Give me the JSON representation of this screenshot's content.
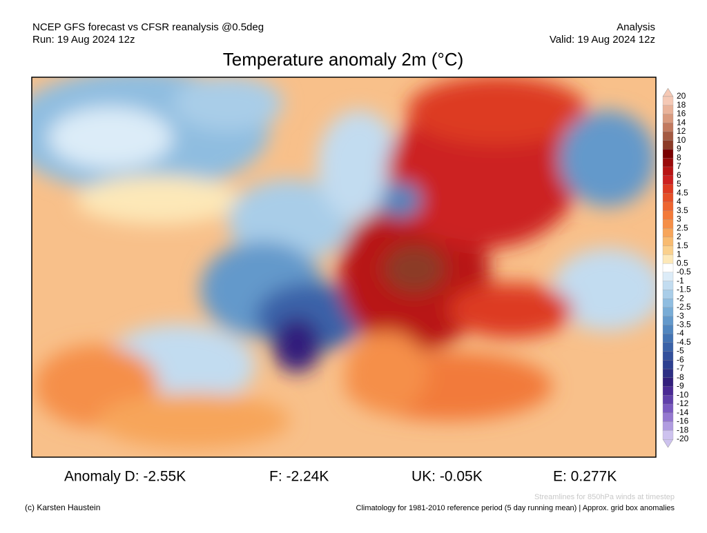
{
  "header": {
    "left": [
      "NCEP GFS forecast vs CFSR reanalysis @0.5deg",
      "Run: 19 Aug 2024 12z"
    ],
    "right": [
      "Analysis",
      "Valid: 19 Aug 2024 12z"
    ],
    "title": "Temperature anomaly 2m (°C)"
  },
  "colorbar": {
    "labels": [
      20,
      18,
      16,
      14,
      12,
      10,
      9,
      8,
      7,
      6,
      5,
      4.5,
      4,
      3.5,
      3,
      2.5,
      2,
      1.5,
      1,
      0.5,
      -0.5,
      -1,
      -1.5,
      -2,
      -2.5,
      -3,
      -3.5,
      -4,
      -4.5,
      -5,
      -6,
      -7,
      -8,
      -9,
      -10,
      -12,
      -14,
      -16,
      -18,
      -20
    ],
    "colors": [
      "#f5c9b5",
      "#e9b39a",
      "#d99a7e",
      "#c27a5f",
      "#a45a42",
      "#8b3b28",
      "#7a0000",
      "#9a0a0a",
      "#b81414",
      "#cc2020",
      "#dd3a22",
      "#e65028",
      "#ee6530",
      "#f27a3a",
      "#f58f48",
      "#f7a55a",
      "#f8bb70",
      "#fad08c",
      "#fde8b8",
      "#ffffff",
      "#dcecf8",
      "#c2dcf0",
      "#a9cde8",
      "#8fbde0",
      "#78acd6",
      "#6399cb",
      "#5186bf",
      "#4373b3",
      "#3a62a8",
      "#33509c",
      "#2e4090",
      "#2d2f84",
      "#321f7c",
      "#4a2a94",
      "#6040aa",
      "#7a5ac0",
      "#9478d0",
      "#b09ce0",
      "#cdc2ee"
    ]
  },
  "stats": [
    "Anomaly D: -2.55K",
    "F: -2.24K",
    "UK: -0.05K",
    "E: 0.277K"
  ],
  "footer": {
    "streamlines": "Streamlines for 850hPa winds at timestep",
    "credit": "(c) Karsten Haustein",
    "climatology": "Climatology for 1981-2010 reference period (5 day running mean) | Approx. grid box anomalies"
  }
}
